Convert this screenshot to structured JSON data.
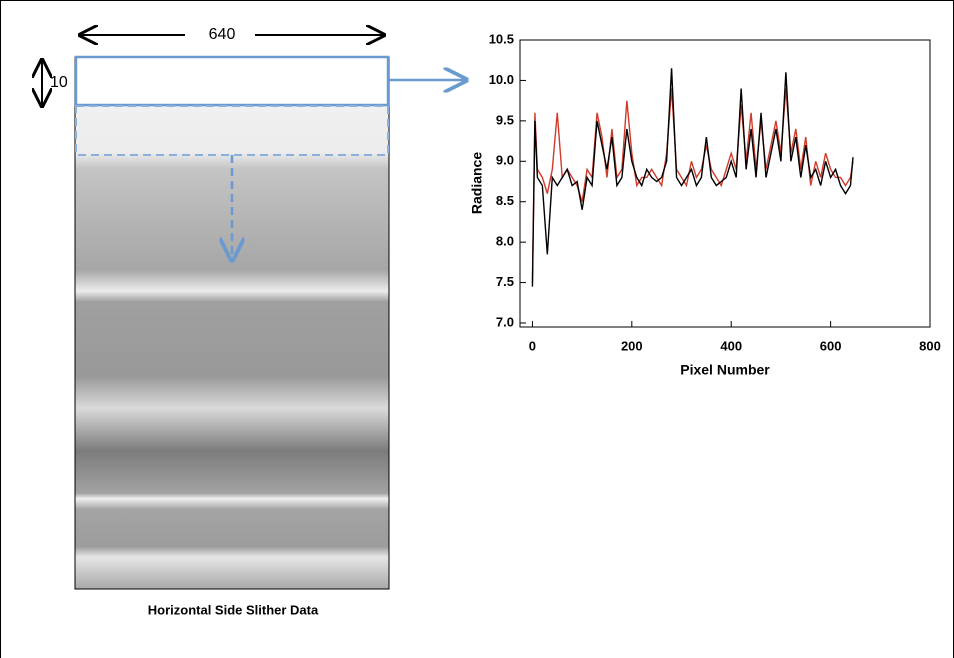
{
  "figure": {
    "width_label": "640",
    "height_label": "10",
    "caption": "Horizontal Side Slither Data"
  },
  "chart_data": {
    "type": "line",
    "y_label": "Radiance",
    "x_label": "Pixel Number",
    "x": [
      0,
      5,
      10,
      20,
      30,
      40,
      50,
      60,
      70,
      80,
      90,
      100,
      110,
      120,
      130,
      140,
      150,
      160,
      170,
      180,
      190,
      200,
      210,
      220,
      230,
      240,
      250,
      260,
      270,
      280,
      290,
      300,
      310,
      320,
      330,
      340,
      350,
      360,
      370,
      380,
      390,
      400,
      410,
      420,
      430,
      440,
      450,
      460,
      470,
      480,
      490,
      500,
      510,
      520,
      530,
      540,
      550,
      560,
      570,
      580,
      590,
      600,
      610,
      620,
      630,
      640,
      645
    ],
    "series": [
      {
        "color": "#d03a2a",
        "values": [
          7.5,
          9.6,
          8.9,
          8.8,
          8.6,
          8.9,
          9.6,
          8.8,
          8.9,
          8.8,
          8.7,
          8.5,
          8.9,
          8.8,
          9.6,
          9.3,
          8.8,
          9.4,
          8.8,
          8.9,
          9.75,
          9.1,
          8.7,
          8.8,
          8.8,
          8.9,
          8.8,
          8.7,
          9.1,
          9.9,
          8.9,
          8.8,
          8.7,
          9.0,
          8.8,
          8.9,
          9.2,
          8.9,
          8.8,
          8.7,
          8.9,
          9.1,
          8.9,
          9.7,
          9.0,
          9.6,
          8.9,
          9.5,
          8.9,
          9.2,
          9.5,
          9.1,
          9.9,
          9.1,
          9.4,
          8.9,
          9.3,
          8.7,
          9.0,
          8.8,
          9.1,
          8.9,
          8.8,
          8.8,
          8.7,
          8.8,
          9.0
        ]
      },
      {
        "color": "#000000",
        "values": [
          7.45,
          9.5,
          8.8,
          8.7,
          7.85,
          8.8,
          8.7,
          8.8,
          8.9,
          8.7,
          8.75,
          8.4,
          8.8,
          8.7,
          9.5,
          9.2,
          8.9,
          9.3,
          8.7,
          8.8,
          9.4,
          9.0,
          8.8,
          8.7,
          8.9,
          8.8,
          8.75,
          8.8,
          9.0,
          10.15,
          8.8,
          8.7,
          8.8,
          8.9,
          8.7,
          8.8,
          9.3,
          8.8,
          8.7,
          8.75,
          8.8,
          9.0,
          8.8,
          9.9,
          8.9,
          9.4,
          8.8,
          9.6,
          8.8,
          9.1,
          9.4,
          9.0,
          10.1,
          9.0,
          9.3,
          8.8,
          9.2,
          8.8,
          8.9,
          8.7,
          9.0,
          8.8,
          8.9,
          8.7,
          8.6,
          8.7,
          9.05
        ]
      }
    ],
    "xlim": [
      -25,
      800
    ],
    "ylim": [
      7.0,
      10.5
    ],
    "xticks": [
      0,
      200,
      400,
      600,
      800
    ],
    "yticks": [
      {
        "value": 7.0,
        "label": "7.0"
      },
      7.5,
      {
        "value": 8.0,
        "label": "8.0"
      },
      8.5,
      {
        "value": 9.0,
        "label": "9.0"
      },
      9.5,
      {
        "value": 10.0,
        "label": "10.0"
      },
      10.5
    ]
  }
}
